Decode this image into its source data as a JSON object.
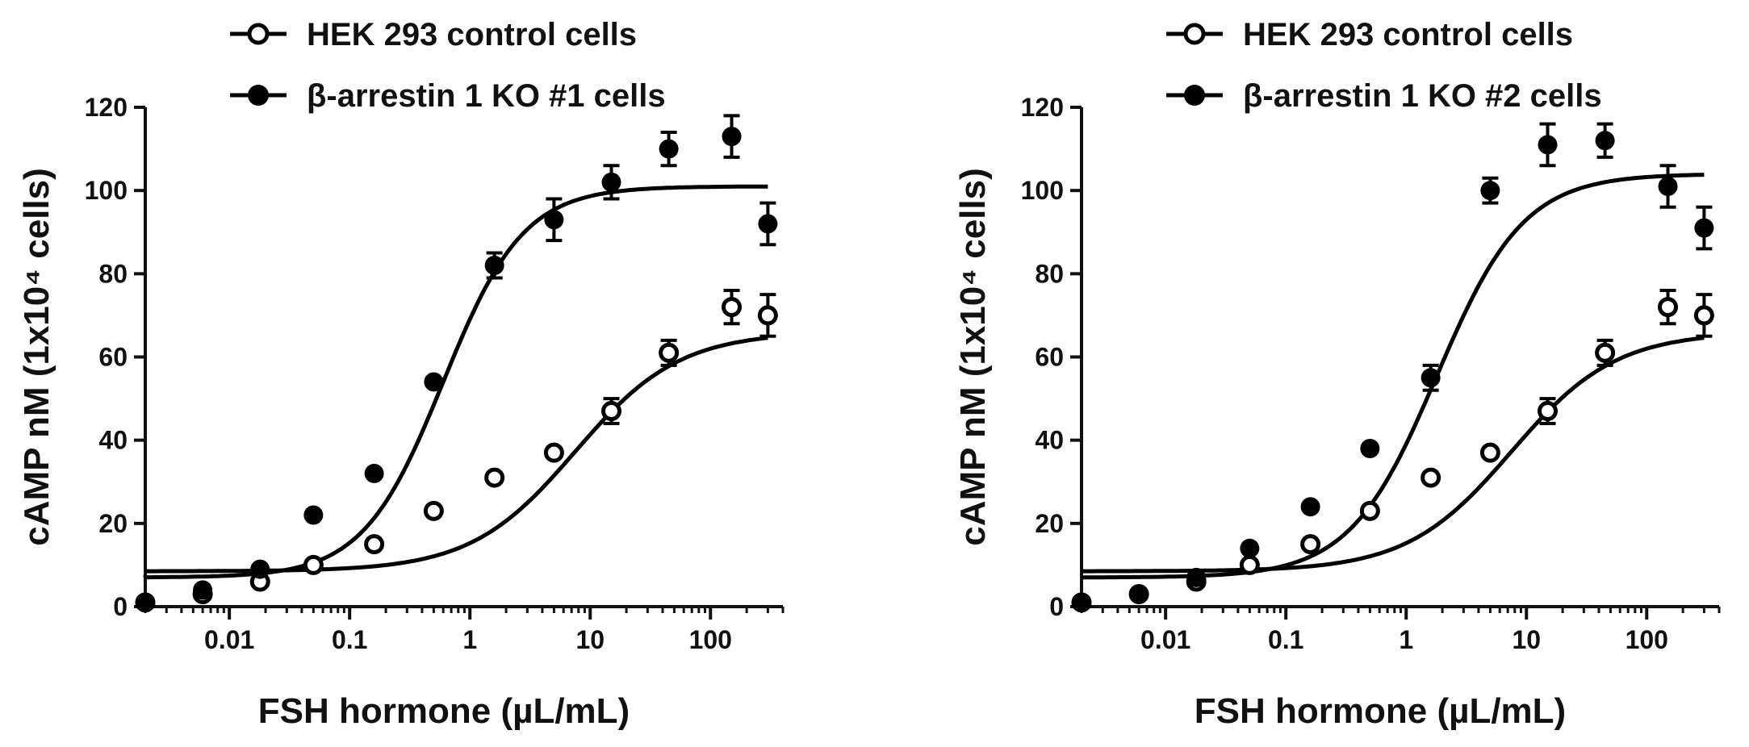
{
  "chart_data": [
    {
      "type": "scatter",
      "title": "",
      "xlabel": "FSH hormone (µL/mL)",
      "ylabel": "cAMP nM (1x10⁴ cells)",
      "x_scale": "log",
      "xlim": [
        0.002,
        400
      ],
      "ylim": [
        0,
        120
      ],
      "x_ticks": [
        "0.01",
        "0.1",
        "1",
        "10",
        "100"
      ],
      "y_ticks": [
        "0",
        "20",
        "40",
        "60",
        "80",
        "100",
        "120"
      ],
      "legend_position": "top",
      "series": [
        {
          "name": "HEK 293 control cells",
          "marker": "open-circle",
          "color": "#000000",
          "x": [
            0.002,
            0.006,
            0.018,
            0.05,
            0.16,
            0.5,
            1.6,
            5,
            15,
            45,
            150,
            300
          ],
          "y": [
            1,
            3,
            6,
            10,
            15,
            23,
            31,
            37,
            47,
            61,
            72,
            70
          ],
          "err": [
            0,
            0,
            0,
            0,
            0,
            0,
            0,
            0,
            3,
            3,
            4,
            5
          ],
          "fit": {
            "bottom": 8.5,
            "top": 66,
            "ec50": 7.5,
            "hill": 1.0
          }
        },
        {
          "name": "β-arrestin 1 KO #1 cells",
          "marker": "filled-circle",
          "color": "#000000",
          "x": [
            0.002,
            0.006,
            0.018,
            0.05,
            0.16,
            0.5,
            1.6,
            5,
            15,
            45,
            150,
            300
          ],
          "y": [
            1,
            4,
            9,
            22,
            32,
            54,
            82,
            93,
            102,
            110,
            113,
            92
          ],
          "err": [
            0,
            0,
            0,
            0,
            0,
            0,
            3,
            5,
            4,
            4,
            5,
            5
          ],
          "fit": {
            "bottom": 7,
            "top": 101,
            "ec50": 0.6,
            "hill": 1.3
          }
        }
      ]
    },
    {
      "type": "scatter",
      "title": "",
      "xlabel": "FSH hormone (µL/mL)",
      "ylabel": "cAMP nM (1x10⁴ cells)",
      "x_scale": "log",
      "xlim": [
        0.002,
        400
      ],
      "ylim": [
        0,
        120
      ],
      "x_ticks": [
        "0.01",
        "0.1",
        "1",
        "10",
        "100"
      ],
      "y_ticks": [
        "0",
        "20",
        "40",
        "60",
        "80",
        "100",
        "120"
      ],
      "legend_position": "top",
      "series": [
        {
          "name": "HEK 293 control cells",
          "marker": "open-circle",
          "color": "#000000",
          "x": [
            0.002,
            0.006,
            0.018,
            0.05,
            0.16,
            0.5,
            1.6,
            5,
            15,
            45,
            150,
            300
          ],
          "y": [
            1,
            3,
            6,
            10,
            15,
            23,
            31,
            37,
            47,
            61,
            72,
            70
          ],
          "err": [
            0,
            0,
            0,
            0,
            0,
            0,
            0,
            0,
            3,
            3,
            4,
            5
          ],
          "fit": {
            "bottom": 8.5,
            "top": 66,
            "ec50": 7.5,
            "hill": 1.0
          }
        },
        {
          "name": "β-arrestin 1 KO #2 cells",
          "marker": "filled-circle",
          "color": "#000000",
          "x": [
            0.002,
            0.006,
            0.018,
            0.05,
            0.16,
            0.5,
            1.6,
            5,
            15,
            45,
            150,
            300
          ],
          "y": [
            1,
            3,
            7,
            14,
            24,
            38,
            55,
            100,
            111,
            112,
            101,
            91
          ],
          "err": [
            0,
            0,
            0,
            0,
            0,
            0,
            3,
            3,
            5,
            4,
            5,
            5
          ],
          "fit": {
            "bottom": 7,
            "top": 104,
            "ec50": 1.8,
            "hill": 1.2
          }
        }
      ]
    }
  ]
}
